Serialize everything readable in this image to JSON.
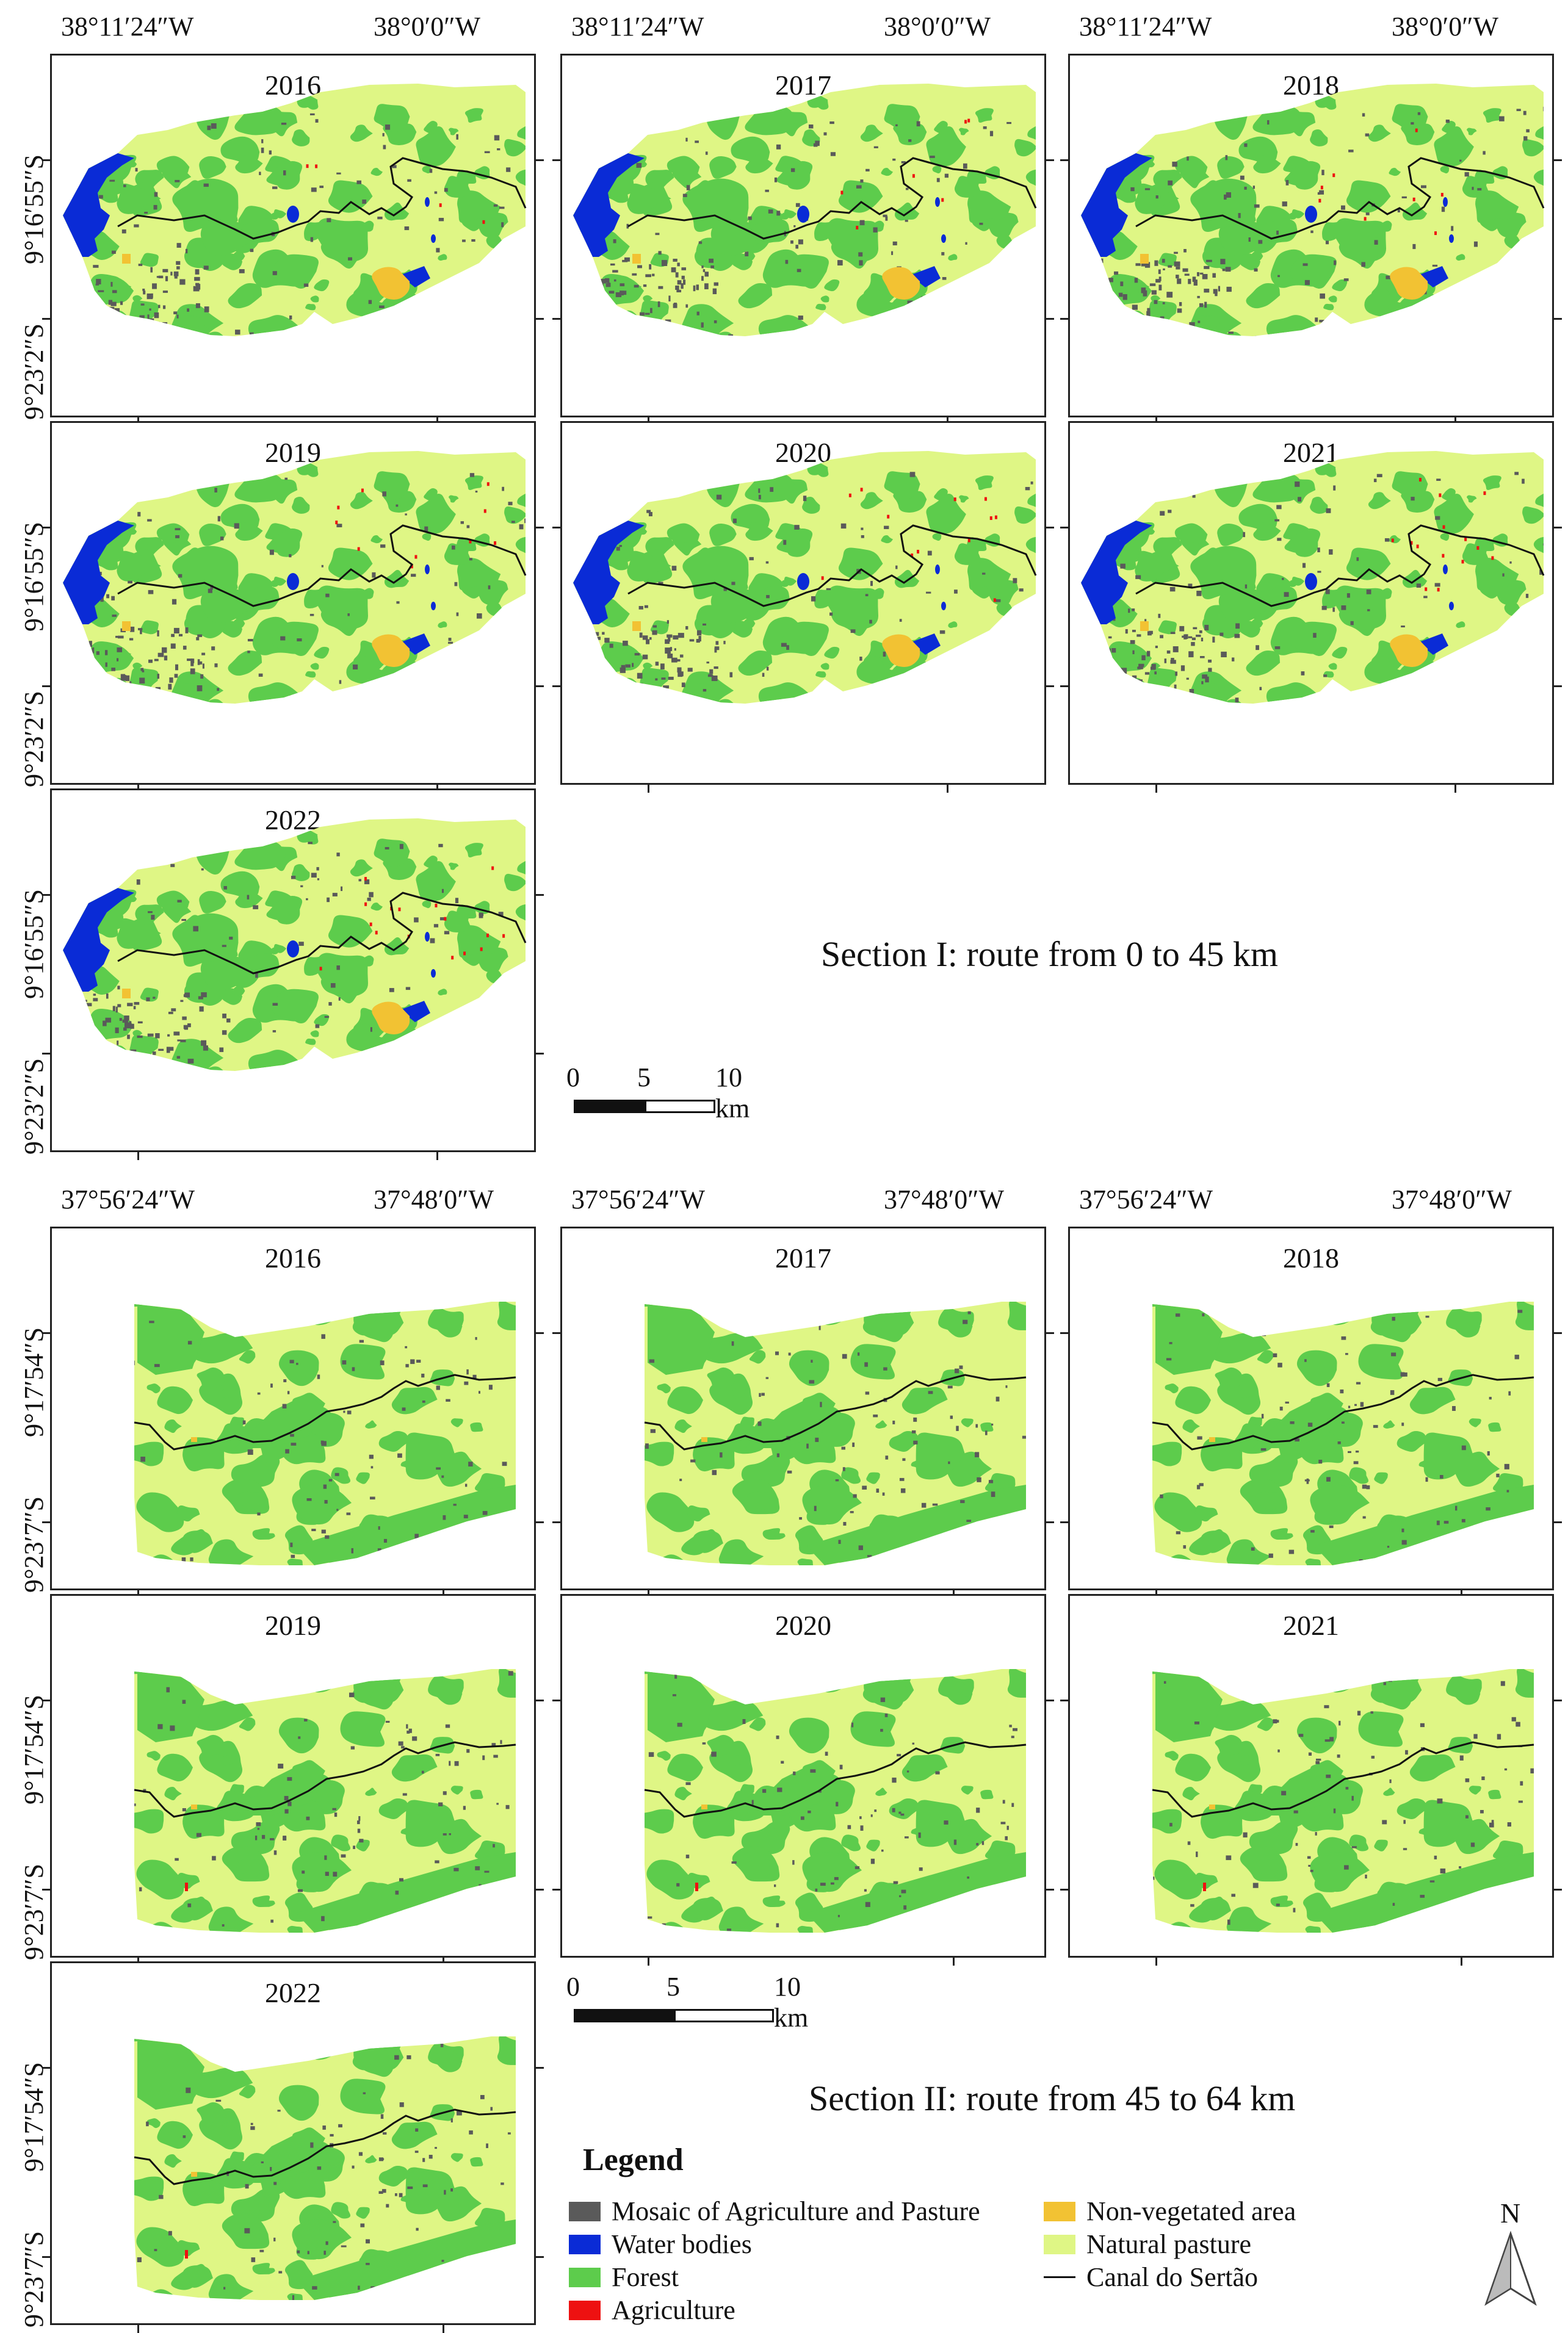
{
  "colors": {
    "mosaic": "#5a5a5a",
    "water": "#0a2bd6",
    "forest": "#5dcc4c",
    "agriculture": "#ee1111",
    "nonveg": "#f2c233",
    "pasture": "#dff685",
    "canal": "#111111"
  },
  "section1": {
    "title": "Section I: route from 0 to 45 km",
    "lon_labels": [
      "38°11′24″W",
      "38°0′0″W"
    ],
    "lat_labels": [
      "9°16′55″S",
      "9°23′2″S"
    ],
    "years": [
      "2016",
      "2017",
      "2018",
      "2019",
      "2020",
      "2021",
      "2022"
    ],
    "scale": {
      "labels": [
        "0",
        "5",
        "10 km"
      ]
    }
  },
  "section2": {
    "title": "Section II: route from 45 to 64 km",
    "lon_labels": [
      "37°56′24″W",
      "37°48′0″W"
    ],
    "lat_labels": [
      "9°17′54″S",
      "9°23′7″S"
    ],
    "years": [
      "2016",
      "2017",
      "2018",
      "2019",
      "2020",
      "2021",
      "2022"
    ],
    "scale": {
      "labels": [
        "0",
        "5",
        "10 km"
      ]
    }
  },
  "legend": {
    "title": "Legend",
    "items": [
      {
        "label": "Mosaic of Agriculture and Pasture",
        "icon": "swatch-mosaic"
      },
      {
        "label": "Water bodies",
        "icon": "swatch-water"
      },
      {
        "label": "Forest",
        "icon": "swatch-forest"
      },
      {
        "label": "Agriculture",
        "icon": "swatch-agriculture"
      },
      {
        "label": "Non-vegetated area",
        "icon": "swatch-nonveg"
      },
      {
        "label": "Natural pasture",
        "icon": "swatch-pasture"
      },
      {
        "label": "Canal do Sertão",
        "icon": "line-canal"
      }
    ]
  },
  "north_arrow": {
    "label": "N",
    "icon": "north-arrow-icon"
  }
}
